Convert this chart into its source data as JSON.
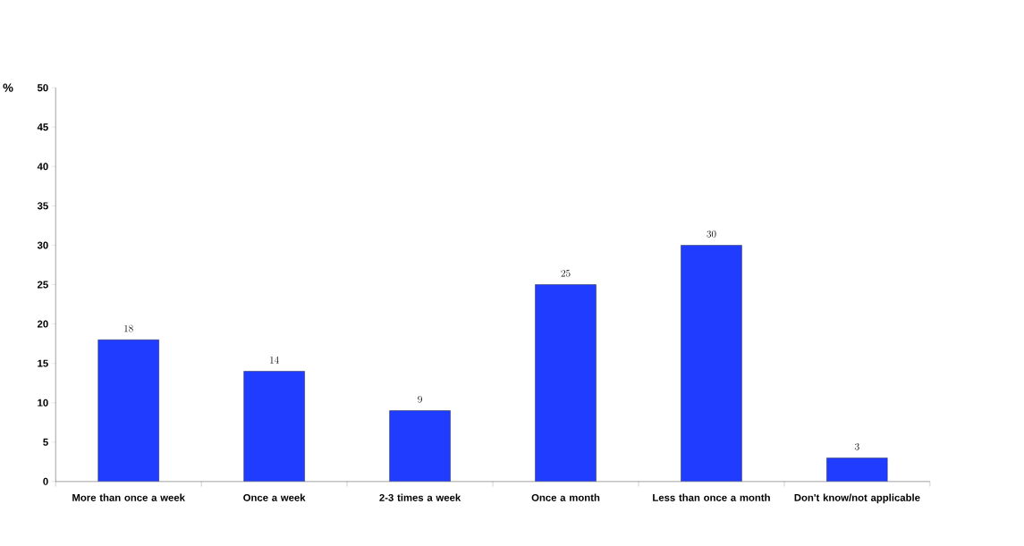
{
  "chart_data": {
    "type": "bar",
    "ylabel": "%",
    "categories": [
      "More than once a week",
      "Once a week",
      "2-3 times a week",
      "Once a month",
      "Less than once a month",
      "Don't know/not applicable"
    ],
    "values": [
      18,
      14,
      9,
      25,
      30,
      3
    ],
    "color": "#1f3cff",
    "ylim": [
      0,
      50
    ],
    "yticks": [
      0,
      5,
      10,
      15,
      20,
      25,
      30,
      35,
      40,
      45,
      50
    ],
    "data_labels": true
  }
}
